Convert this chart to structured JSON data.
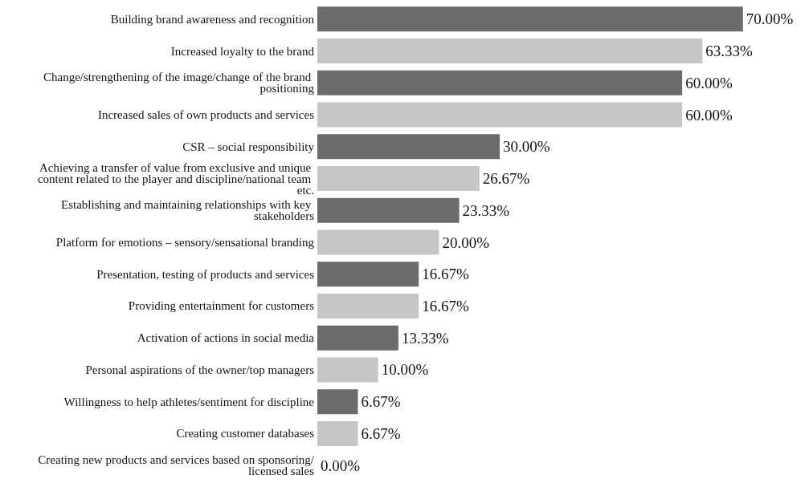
{
  "chart_data": {
    "type": "bar",
    "orientation": "horizontal",
    "categories": [
      "Building brand awareness and recognition",
      "Increased loyalty to the brand",
      "Change/strengthening of the image/change of the brand positioning",
      "Increased sales of own products and services",
      "CSR – social responsibility",
      "Achieving a transfer of value from exclusive and unique content related to the player and discipline/national team etc.",
      "Establishing and maintaining relationships with key stakeholders",
      "Platform for emotions – sensory/sensational branding",
      "Presentation, testing of products and services",
      "Providing entertainment for customers",
      "Activation of actions in social media",
      "Personal aspirations of the owner/top managers",
      "Willingness to help athletes/sentiment for discipline",
      "Creating customer databases",
      "Creating new products and services based on sponsoring/licensed sales"
    ],
    "values": [
      70,
      63.33,
      60,
      60,
      30,
      26.67,
      23.33,
      20,
      16.67,
      16.67,
      13.33,
      10,
      6.67,
      6.67,
      0
    ],
    "value_labels": [
      "70.00%",
      "63.33%",
      "60.00%",
      "60.00%",
      "30.00%",
      "26.67%",
      "23.33%",
      "20.00%",
      "16.67%",
      "16.67%",
      "13.33%",
      "10.00%",
      "6.67%",
      "6.67%",
      "0.00%"
    ],
    "colors": [
      "#6b6b6b",
      "#c6c6c6",
      "#6b6b6b",
      "#c6c6c6",
      "#6b6b6b",
      "#c6c6c6",
      "#6b6b6b",
      "#c6c6c6",
      "#6b6b6b",
      "#c6c6c6",
      "#6b6b6b",
      "#c6c6c6",
      "#6b6b6b",
      "#c6c6c6",
      "#6b6b6b"
    ]
  }
}
